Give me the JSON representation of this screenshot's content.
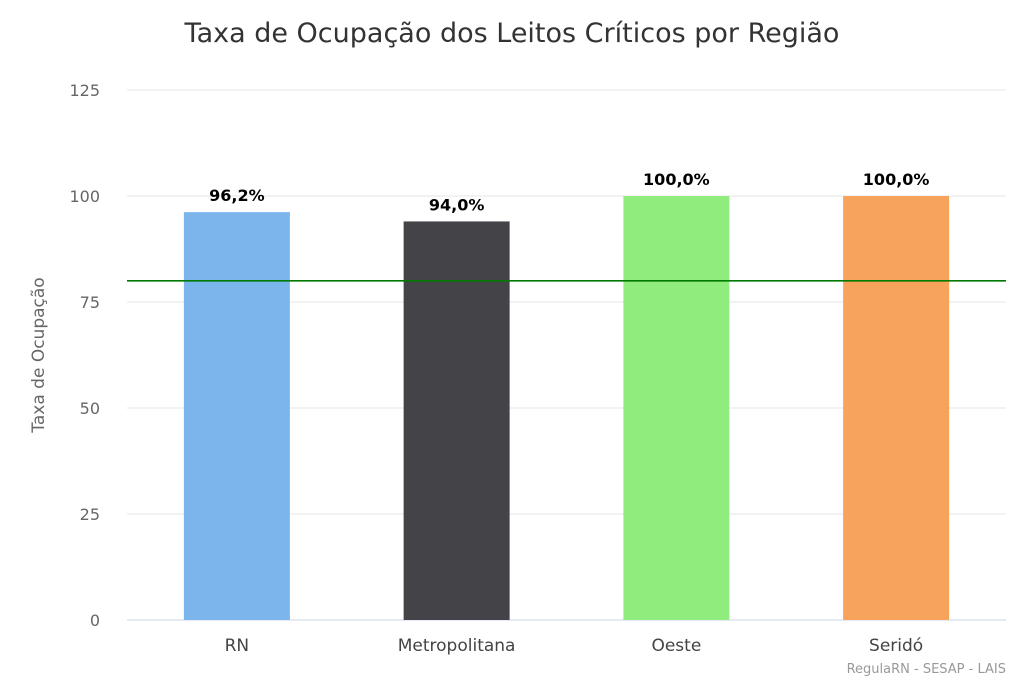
{
  "chart_data": {
    "type": "bar",
    "title": "Taxa de Ocupação dos Leitos Críticos por Região",
    "xlabel": "",
    "ylabel": "Taxa de Ocupação",
    "ylim": [
      0,
      125
    ],
    "yticks": [
      "0",
      "25",
      "50",
      "75",
      "100",
      "125"
    ],
    "grid": true,
    "categories": [
      "RN",
      "Metropolitana",
      "Oeste",
      "Seridó"
    ],
    "values": [
      96.2,
      94.0,
      100.0,
      100.0
    ],
    "data_labels": [
      "96,2%",
      "94,0%",
      "100,0%",
      "100,0%"
    ],
    "colors": [
      "#7cb5ec",
      "#434348",
      "#90ed7d",
      "#f7a35c"
    ],
    "reference_line": {
      "value": 80,
      "color": "#007a00"
    },
    "credits": "RegulaRN - SESAP - LAIS"
  }
}
